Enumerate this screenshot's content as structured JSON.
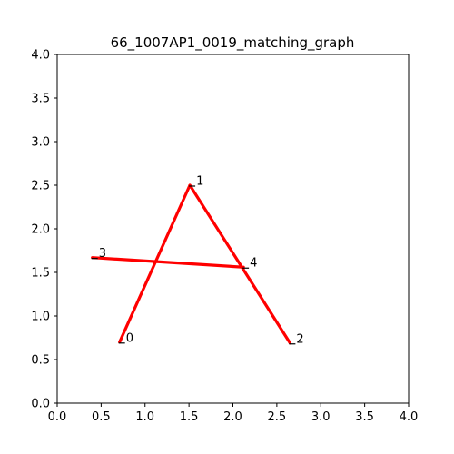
{
  "chart_data": {
    "type": "line",
    "title": "66_1007AP1_0019_matching_graph",
    "xlabel": "",
    "ylabel": "",
    "xlim": [
      0.0,
      4.0
    ],
    "ylim": [
      0.0,
      4.0
    ],
    "grid": false,
    "x_ticks": [
      "0.0",
      "0.5",
      "1.0",
      "1.5",
      "2.0",
      "2.5",
      "3.0",
      "3.5",
      "4.0"
    ],
    "y_ticks": [
      "0.0",
      "0.5",
      "1.0",
      "1.5",
      "2.0",
      "2.5",
      "3.0",
      "3.5",
      "4.0"
    ],
    "nodes": [
      {
        "label": "0",
        "x": 0.71,
        "y": 0.7
      },
      {
        "label": "1",
        "x": 1.51,
        "y": 2.5
      },
      {
        "label": "2",
        "x": 2.65,
        "y": 0.69
      },
      {
        "label": "3",
        "x": 0.4,
        "y": 1.67
      },
      {
        "label": "4",
        "x": 2.12,
        "y": 1.56
      }
    ],
    "edges": [
      {
        "from": "0",
        "to": "1"
      },
      {
        "from": "1",
        "to": "2"
      },
      {
        "from": "3",
        "to": "4"
      }
    ],
    "edge_color": "#ff0000"
  }
}
